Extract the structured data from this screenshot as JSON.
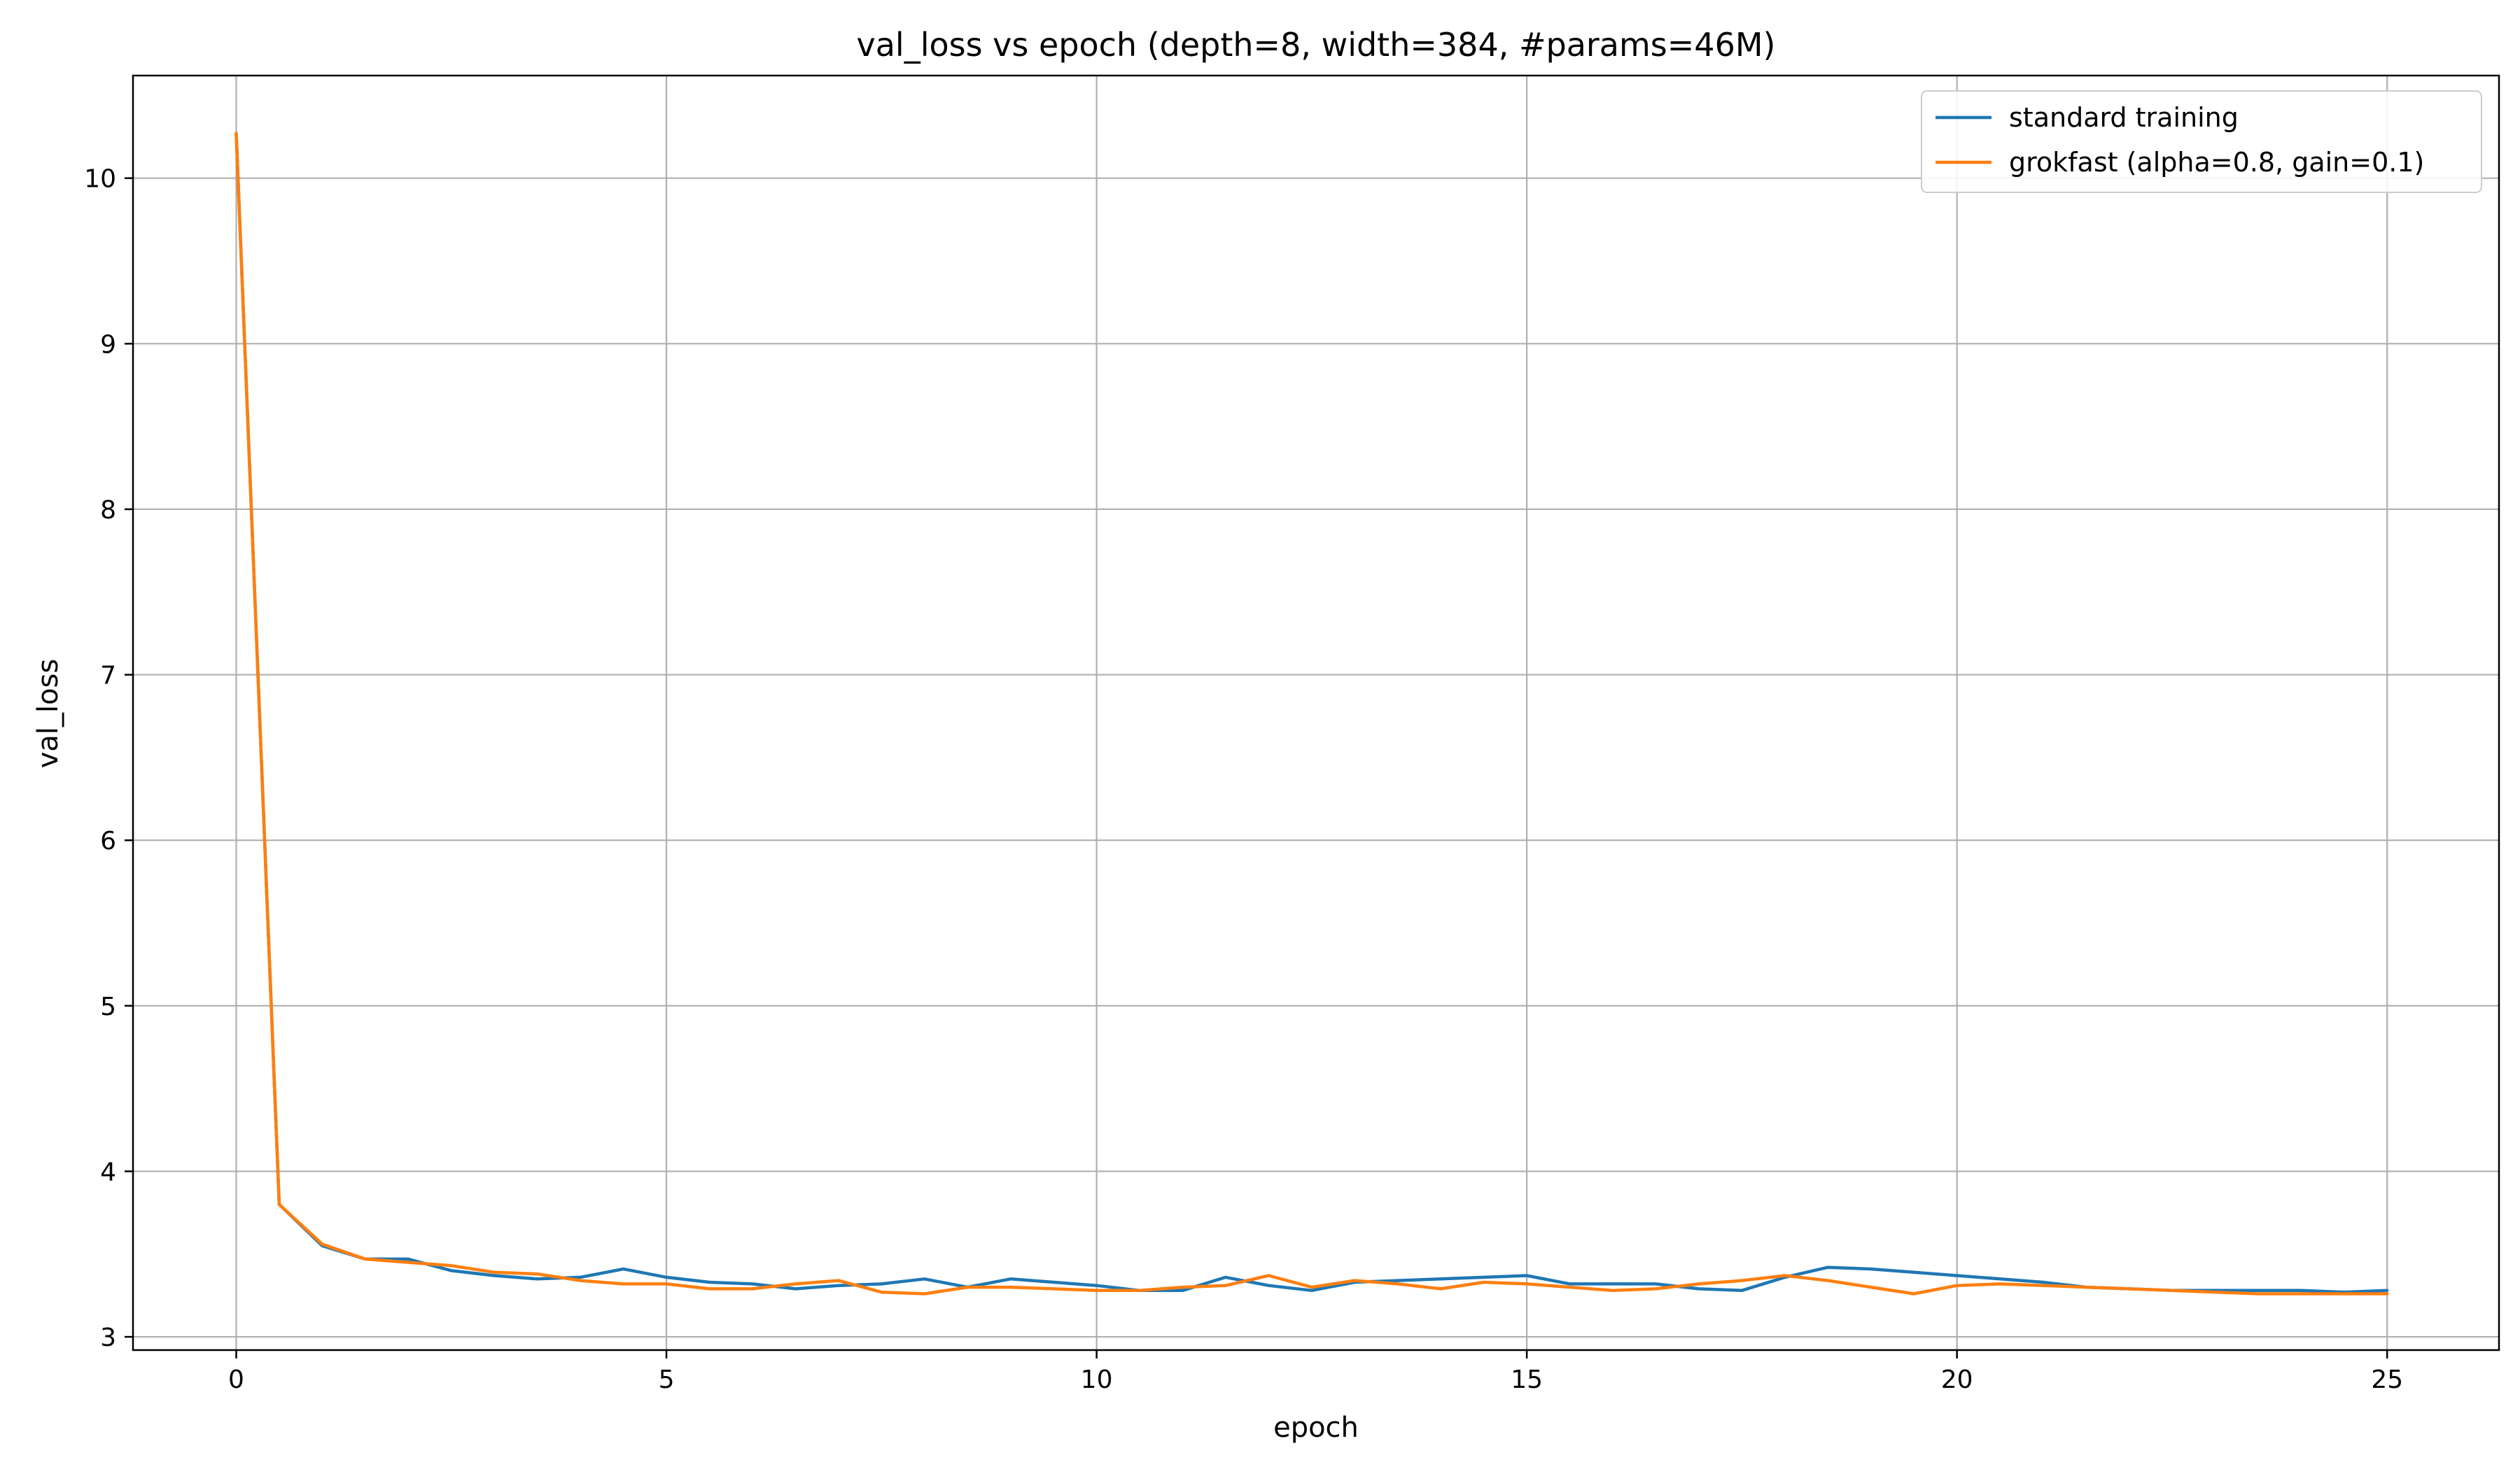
{
  "chart_data": {
    "type": "line",
    "title": "val_loss vs epoch (depth=8, width=384, #params=46M)",
    "xlabel": "epoch",
    "ylabel": "val_loss",
    "xlim": [
      -1.2,
      26.3
    ],
    "ylim": [
      2.92,
      10.62
    ],
    "xticks": [
      0,
      5,
      10,
      15,
      20,
      25
    ],
    "yticks": [
      3,
      4,
      5,
      6,
      7,
      8,
      9,
      10
    ],
    "grid": true,
    "legend_position": "top-right",
    "series": [
      {
        "name": "standard training",
        "color": "#1f77b4",
        "x": [
          0,
          0.5,
          1,
          1.5,
          2,
          2.5,
          3,
          3.5,
          4,
          4.5,
          5,
          5.5,
          6,
          6.5,
          7,
          7.5,
          8,
          8.5,
          9,
          9.5,
          10,
          10.5,
          11,
          11.5,
          12,
          12.5,
          13,
          13.5,
          14,
          14.5,
          15,
          15.5,
          16,
          16.5,
          17,
          17.5,
          18,
          18.5,
          19,
          19.5,
          20,
          20.5,
          21,
          21.5,
          22,
          22.5,
          23,
          23.5,
          24,
          24.5,
          25
        ],
        "y": [
          10.27,
          3.8,
          3.55,
          3.47,
          3.47,
          3.4,
          3.37,
          3.35,
          3.36,
          3.41,
          3.36,
          3.33,
          3.32,
          3.29,
          3.31,
          3.32,
          3.35,
          3.3,
          3.35,
          3.33,
          3.31,
          3.28,
          3.28,
          3.36,
          3.31,
          3.28,
          3.33,
          3.34,
          3.35,
          3.36,
          3.37,
          3.32,
          3.32,
          3.32,
          3.29,
          3.28,
          3.36,
          3.42,
          3.41,
          3.39,
          3.37,
          3.35,
          3.33,
          3.3,
          3.29,
          3.28,
          3.28,
          3.28,
          3.28,
          3.27,
          3.28
        ]
      },
      {
        "name": "grokfast (alpha=0.8, gain=0.1)",
        "color": "#ff7f0e",
        "x": [
          0,
          0.5,
          1,
          1.5,
          2,
          2.5,
          3,
          3.5,
          4,
          4.5,
          5,
          5.5,
          6,
          6.5,
          7,
          7.5,
          8,
          8.5,
          9,
          9.5,
          10,
          10.5,
          11,
          11.5,
          12,
          12.5,
          13,
          13.5,
          14,
          14.5,
          15,
          15.5,
          16,
          16.5,
          17,
          17.5,
          18,
          18.5,
          19,
          19.5,
          20,
          20.5,
          21,
          21.5,
          22,
          22.5,
          23,
          23.5,
          24,
          24.5,
          25
        ],
        "y": [
          10.27,
          3.8,
          3.56,
          3.47,
          3.45,
          3.43,
          3.39,
          3.38,
          3.34,
          3.32,
          3.32,
          3.29,
          3.29,
          3.32,
          3.34,
          3.27,
          3.26,
          3.3,
          3.3,
          3.29,
          3.28,
          3.28,
          3.3,
          3.31,
          3.37,
          3.3,
          3.34,
          3.32,
          3.29,
          3.33,
          3.32,
          3.3,
          3.28,
          3.29,
          3.32,
          3.34,
          3.37,
          3.34,
          3.3,
          3.26,
          3.31,
          3.32,
          3.31,
          3.3,
          3.29,
          3.28,
          3.27,
          3.26,
          3.26,
          3.26,
          3.26
        ]
      }
    ]
  }
}
